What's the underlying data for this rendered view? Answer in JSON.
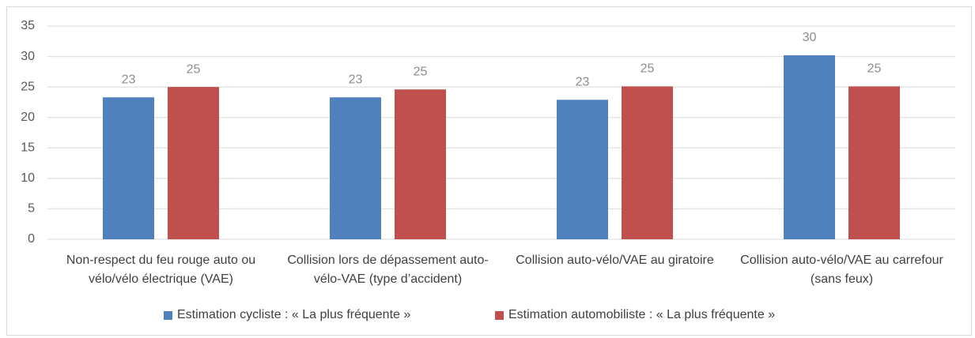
{
  "chart_data": {
    "type": "bar",
    "categories": [
      "Non-respect du feu rouge auto ou vélo/vélo électrique (VAE)",
      "Collision lors de dépassement auto-vélo-VAE (type d’accident)",
      "Collision auto-vélo/VAE au giratoire",
      "Collision auto-vélo/VAE au carrefour (sans feux)"
    ],
    "series": [
      {
        "name": "Estimation cycliste : « La plus fréquente »",
        "color": "#4f81bd",
        "values": [
          23.3,
          23.3,
          22.9,
          30.2
        ],
        "value_labels": [
          "23",
          "23",
          "23",
          "30"
        ]
      },
      {
        "name": "Estimation automobiliste : « La plus fréquente »",
        "color": "#c0504d",
        "values": [
          25.0,
          24.6,
          25.1,
          25.1
        ],
        "value_labels": [
          "25",
          "25",
          "25",
          "25"
        ]
      }
    ],
    "ylim": [
      0,
      35
    ],
    "yticks": [
      0,
      5,
      10,
      15,
      20,
      25,
      30,
      35
    ],
    "grid": true,
    "legend": "bottom"
  }
}
